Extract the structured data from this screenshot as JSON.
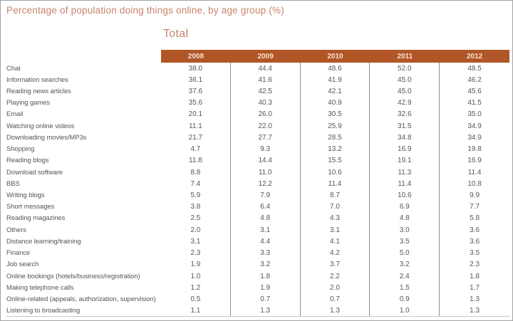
{
  "title": "Percentage of population doing things online, by age group (%)",
  "subtitle": "Total",
  "colors": {
    "accent_header_band": "#b15626",
    "header_band_text": "#f8e3d5",
    "title_text": "#c8836b",
    "body_text": "#55565a",
    "column_divider": "#8e9092",
    "table_bottom_border": "#c6c8c9",
    "frame_border": "#9fa1a3"
  },
  "chart_data": {
    "type": "table",
    "title": "Percentage of population doing things online, by age group (%)",
    "group_label": "Total",
    "columns": [
      "2008",
      "2009",
      "2010",
      "2011",
      "2012"
    ],
    "rows": [
      {
        "label": "Chat",
        "values": [
          38.0,
          44.4,
          48.6,
          52.0,
          48.5
        ]
      },
      {
        "label": "Information searches",
        "values": [
          36.1,
          41.6,
          41.9,
          45.0,
          46.2
        ]
      },
      {
        "label": "Reading news articles",
        "values": [
          37.6,
          42.5,
          42.1,
          45.0,
          45.6
        ]
      },
      {
        "label": "Playing games",
        "values": [
          35.6,
          40.3,
          40.9,
          42.9,
          41.5
        ]
      },
      {
        "label": "Email",
        "values": [
          20.1,
          26.0,
          30.5,
          32.6,
          35.0
        ]
      },
      {
        "label": "Watching online videos",
        "values": [
          11.1,
          22.0,
          25.9,
          31.5,
          34.9
        ]
      },
      {
        "label": "Downloading movies/MP3s",
        "values": [
          21.7,
          27.7,
          28.5,
          34.8,
          34.9
        ]
      },
      {
        "label": "Shopping",
        "values": [
          4.7,
          9.3,
          13.2,
          16.9,
          19.8
        ]
      },
      {
        "label": "Reading blogs",
        "values": [
          11.8,
          14.4,
          15.5,
          19.1,
          16.9
        ]
      },
      {
        "label": "Download software",
        "values": [
          8.8,
          11.0,
          10.6,
          11.3,
          11.4
        ]
      },
      {
        "label": "BBS",
        "values": [
          7.4,
          12.2,
          11.4,
          11.4,
          10.8
        ]
      },
      {
        "label": "Writing blogs",
        "values": [
          5.9,
          7.9,
          8.7,
          10.6,
          9.9
        ]
      },
      {
        "label": "Short messages",
        "values": [
          3.8,
          6.4,
          7.0,
          6.9,
          7.7
        ]
      },
      {
        "label": "Reading magazines",
        "values": [
          2.5,
          4.8,
          4.3,
          4.8,
          5.8
        ]
      },
      {
        "label": "Others",
        "values": [
          2.0,
          3.1,
          3.1,
          3.0,
          3.6
        ]
      },
      {
        "label": "Distance learning/training",
        "values": [
          3.1,
          4.4,
          4.1,
          3.5,
          3.6
        ]
      },
      {
        "label": "Finance",
        "values": [
          2.3,
          3.3,
          4.2,
          5.0,
          3.5
        ]
      },
      {
        "label": "Job search",
        "values": [
          1.9,
          3.2,
          3.7,
          3.2,
          2.3
        ]
      },
      {
        "label": "Online bookings (hotels/business/registration)",
        "values": [
          1.0,
          1.8,
          2.2,
          2.4,
          1.8
        ]
      },
      {
        "label": "Making telephone calls",
        "values": [
          1.2,
          1.9,
          2.0,
          1.5,
          1.7
        ]
      },
      {
        "label": "Online-related (appeals, authorization, supervision)",
        "values": [
          0.5,
          0.7,
          0.7,
          0.9,
          1.3
        ]
      },
      {
        "label": "Listening to broadcasting",
        "values": [
          1.1,
          1.3,
          1.3,
          1.0,
          1.3
        ]
      }
    ]
  }
}
